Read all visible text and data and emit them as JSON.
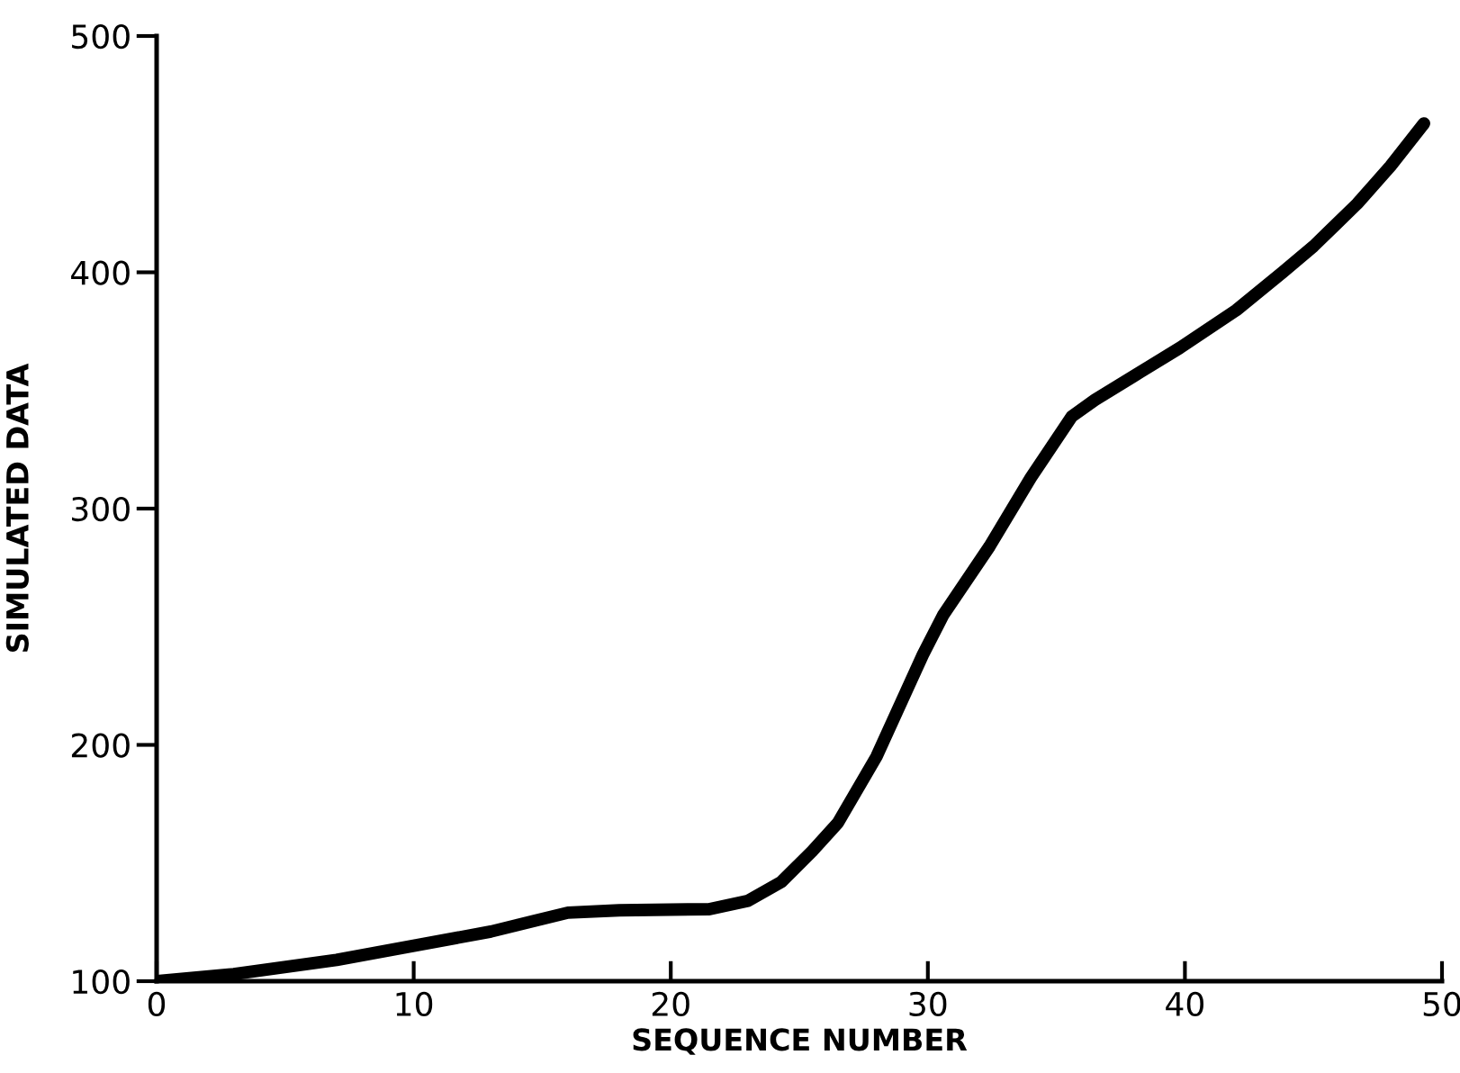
{
  "chart_data": {
    "type": "line",
    "xlabel": "SEQUENCE NUMBER",
    "ylabel": "SIMULATED DATA",
    "x": [
      0,
      3,
      7,
      10,
      13,
      16,
      18,
      21.5,
      23,
      24.3,
      25.5,
      26.5,
      28,
      29.8,
      30.6,
      32.4,
      34,
      35.6,
      36.5,
      38,
      39.8,
      42,
      43.8,
      45,
      46.7,
      48,
      49.3
    ],
    "series": [
      {
        "color": "#000000",
        "values": [
          100,
          103,
          109,
          115,
          121,
          129,
          130,
          130.5,
          134,
          142,
          155,
          167,
          195,
          238,
          255,
          284,
          313,
          339,
          346,
          356,
          368,
          384,
          400,
          411,
          429,
          445,
          463
        ]
      }
    ],
    "xlim": [
      0,
      50
    ],
    "ylim": [
      100,
      500
    ],
    "xticks": [
      0,
      10,
      20,
      30,
      40,
      50
    ],
    "yticks": [
      100,
      200,
      300,
      400,
      500
    ],
    "grid": false,
    "marker": "none",
    "line_style": "solid"
  }
}
